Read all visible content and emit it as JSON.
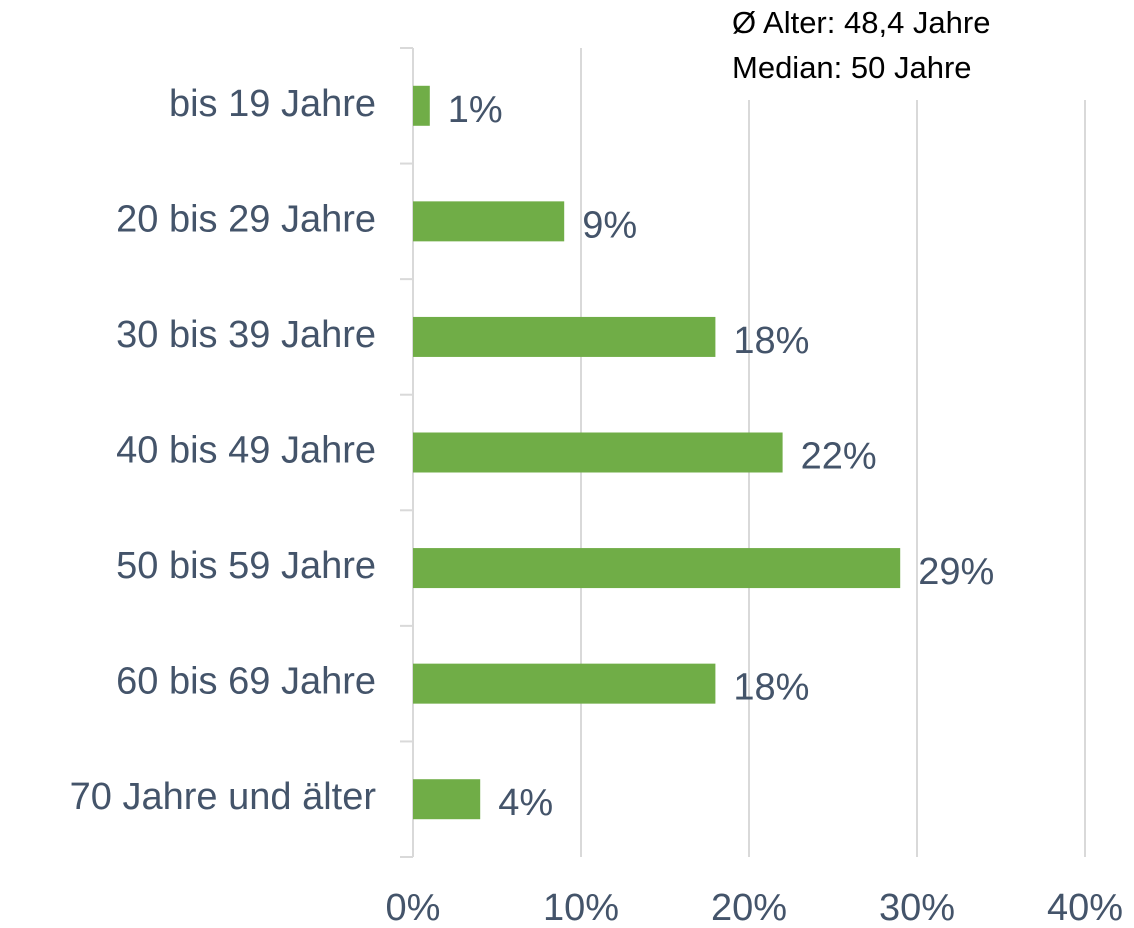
{
  "chart_data": {
    "type": "bar",
    "orientation": "horizontal",
    "categories": [
      "bis 19 Jahre",
      "20 bis 29 Jahre",
      "30 bis 39 Jahre",
      "40 bis 49 Jahre",
      "50 bis 59 Jahre",
      "60 bis 69 Jahre",
      "70 Jahre und älter"
    ],
    "values": [
      1,
      9,
      18,
      22,
      29,
      18,
      4
    ],
    "value_labels": [
      "1%",
      "9%",
      "18%",
      "22%",
      "29%",
      "18%",
      "4%"
    ],
    "color": "#70ad47",
    "xlim": [
      0,
      40
    ],
    "xticks": [
      {
        "value": 0,
        "label": "0%"
      },
      {
        "value": 10,
        "label": "10%"
      },
      {
        "value": 20,
        "label": "20%"
      },
      {
        "value": 30,
        "label": "30%"
      },
      {
        "value": 40,
        "label": "40%"
      }
    ],
    "grid": true,
    "annotations": [
      "Ø Alter: 48,4 Jahre",
      "Median: 50 Jahre"
    ]
  }
}
